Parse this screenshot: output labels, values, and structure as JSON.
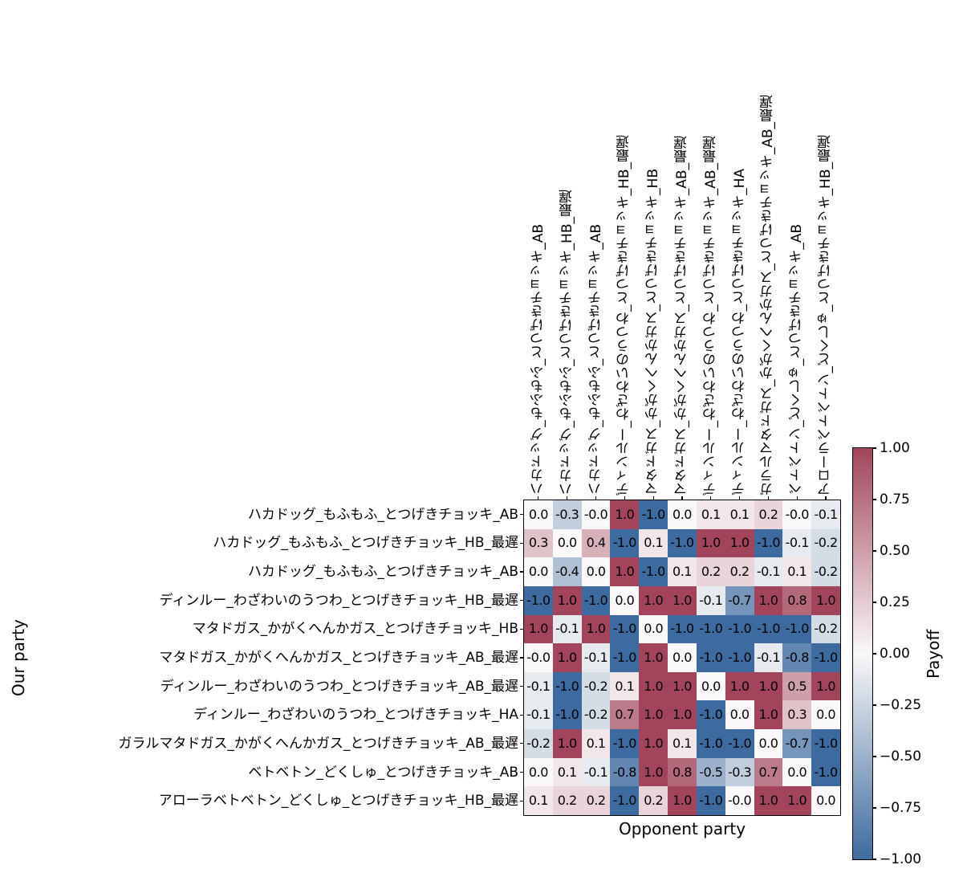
{
  "chart_data": {
    "type": "heatmap",
    "title": "",
    "xlabel": "Opponent party",
    "ylabel": "Our party",
    "colorbar_label": "Payoff",
    "vmin": -1.0,
    "vmax": 1.0,
    "grid": false,
    "legend_position": "colorbar-right",
    "colorbar_ticks": [
      1.0,
      0.75,
      0.5,
      0.25,
      0.0,
      -0.25,
      -0.5,
      -0.75,
      -1.0
    ],
    "colorbar_tick_labels": [
      "1.00",
      "0.75",
      "0.50",
      "0.25",
      "0.00",
      "−0.25",
      "−0.50",
      "−0.75",
      "−1.00"
    ],
    "rows": [
      "ハカドッグ_もふもふ_とつげきチョッキ_AB",
      "ハカドッグ_もふもふ_とつげきチョッキ_HB_最遅",
      "ハカドッグ_もふもふ_とつげきチョッキ_AB",
      "ディンルー_わざわいのうつわ_とつげきチョッキ_HB_最遅",
      "マタドガス_かがくへんかガス_とつげきチョッキ_HB",
      "マタドガス_かがくへんかガス_とつげきチョッキ_AB_最遅",
      "ディンルー_わざわいのうつわ_とつげきチョッキ_AB_最遅",
      "ディンルー_わざわいのうつわ_とつげきチョッキ_HA",
      "ガラルマタドガス_かがくへんかガス_とつげきチョッキ_AB_最遅",
      "ベトベトン_どくしゅ_とつげきチョッキ_AB",
      "アローラベトベトン_どくしゅ_とつげきチョッキ_HB_最遅"
    ],
    "columns": [
      "ハカドッグ_もふもふ_とつげきチョッキ_AB",
      "ハカドッグ_もふもふ_とつげきチョッキ_HB_最遅",
      "ハカドッグ_もふもふ_とつげきチョッキ_AB",
      "ディンルー_わざわいのうつわ_とつげきチョッキ_HB_最遅",
      "マタドガス_かがくへんかガス_とつげきチョッキ_HB",
      "マタドガス_かがくへんかガス_とつげきチョッキ_AB_最遅",
      "ディンルー_わざわいのうつわ_とつげきチョッキ_AB_最遅",
      "ディンルー_わざわいのうつわ_とつげきチョッキ_HA",
      "ガラルマタドガス_かがくへんかガス_とつげきチョッキ_AB_最遅",
      "ベトベトン_どくしゅ_とつげきチョッキ_AB",
      "アローラベトベトン_どくしゅ_とつげきチョッキ_HB_最遅"
    ],
    "cells": [
      [
        "0.0",
        "-0.3",
        "-0.0",
        "1.0",
        "-1.0",
        "0.0",
        "0.1",
        "0.1",
        "0.2",
        "-0.0",
        "-0.1"
      ],
      [
        "0.3",
        "0.0",
        "0.4",
        "-1.0",
        "0.1",
        "-1.0",
        "1.0",
        "1.0",
        "-1.0",
        "-0.1",
        "-0.2"
      ],
      [
        "0.0",
        "-0.4",
        "0.0",
        "1.0",
        "-1.0",
        "0.1",
        "0.2",
        "0.2",
        "-0.1",
        "0.1",
        "-0.2"
      ],
      [
        "-1.0",
        "1.0",
        "-1.0",
        "0.0",
        "1.0",
        "1.0",
        "-0.1",
        "-0.7",
        "1.0",
        "0.8",
        "1.0"
      ],
      [
        "1.0",
        "-0.1",
        "1.0",
        "-1.0",
        "0.0",
        "-1.0",
        "-1.0",
        "-1.0",
        "-1.0",
        "-1.0",
        "-0.2"
      ],
      [
        "-0.0",
        "1.0",
        "-0.1",
        "-1.0",
        "1.0",
        "0.0",
        "-1.0",
        "-1.0",
        "-0.1",
        "-0.8",
        "-1.0"
      ],
      [
        "-0.1",
        "-1.0",
        "-0.2",
        "0.1",
        "1.0",
        "1.0",
        "0.0",
        "1.0",
        "1.0",
        "0.5",
        "1.0"
      ],
      [
        "-0.1",
        "-1.0",
        "-0.2",
        "0.7",
        "1.0",
        "1.0",
        "-1.0",
        "0.0",
        "1.0",
        "0.3",
        "0.0"
      ],
      [
        "-0.2",
        "1.0",
        "0.1",
        "-1.0",
        "1.0",
        "0.1",
        "-1.0",
        "-1.0",
        "0.0",
        "-0.7",
        "-1.0"
      ],
      [
        "0.0",
        "0.1",
        "-0.1",
        "-0.8",
        "1.0",
        "0.8",
        "-0.5",
        "-0.3",
        "0.7",
        "0.0",
        "-1.0"
      ],
      [
        "0.1",
        "0.2",
        "0.2",
        "-1.0",
        "0.2",
        "1.0",
        "-1.0",
        "-0.0",
        "1.0",
        "1.0",
        "0.0"
      ]
    ],
    "values": [
      [
        0.0,
        -0.3,
        -0.0,
        1.0,
        -1.0,
        0.0,
        0.1,
        0.1,
        0.2,
        -0.0,
        -0.1
      ],
      [
        0.3,
        0.0,
        0.4,
        -1.0,
        0.1,
        -1.0,
        1.0,
        1.0,
        -1.0,
        -0.1,
        -0.2
      ],
      [
        0.0,
        -0.4,
        0.0,
        1.0,
        -1.0,
        0.1,
        0.2,
        0.2,
        -0.1,
        0.1,
        -0.2
      ],
      [
        -1.0,
        1.0,
        -1.0,
        0.0,
        1.0,
        1.0,
        -0.1,
        -0.7,
        1.0,
        0.8,
        1.0
      ],
      [
        1.0,
        -0.1,
        1.0,
        -1.0,
        0.0,
        -1.0,
        -1.0,
        -1.0,
        -1.0,
        -1.0,
        -0.2
      ],
      [
        -0.0,
        1.0,
        -0.1,
        -1.0,
        1.0,
        0.0,
        -1.0,
        -1.0,
        -0.1,
        -0.8,
        -1.0
      ],
      [
        -0.1,
        -1.0,
        -0.2,
        0.1,
        1.0,
        1.0,
        0.0,
        1.0,
        1.0,
        0.5,
        1.0
      ],
      [
        -0.1,
        -1.0,
        -0.2,
        0.7,
        1.0,
        1.0,
        -1.0,
        0.0,
        1.0,
        0.3,
        0.0
      ],
      [
        -0.2,
        1.0,
        0.1,
        -1.0,
        1.0,
        0.1,
        -1.0,
        -1.0,
        0.0,
        -0.7,
        -1.0
      ],
      [
        0.0,
        0.1,
        -0.1,
        -0.8,
        1.0,
        0.8,
        -0.5,
        -0.3,
        0.7,
        0.0,
        -1.0
      ],
      [
        0.1,
        0.2,
        0.2,
        -1.0,
        0.2,
        1.0,
        -1.0,
        -0.0,
        1.0,
        1.0,
        0.0
      ]
    ]
  },
  "colors": {
    "positive_end": "#a2455c",
    "negative_end": "#3e6b9f",
    "midpoint": "#faf8f8",
    "cell_text": "#000000",
    "spine": "#000000",
    "background": "#ffffff"
  }
}
